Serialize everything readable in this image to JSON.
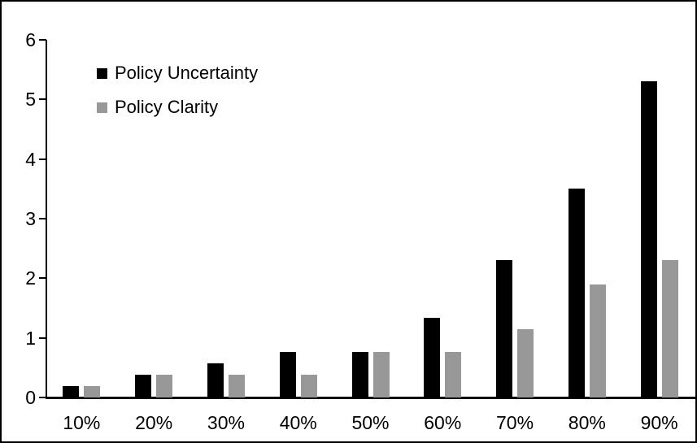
{
  "chart_data": {
    "type": "bar",
    "title": "",
    "xlabel": "",
    "ylabel": "",
    "categories": [
      "10%",
      "20%",
      "30%",
      "40%",
      "50%",
      "60%",
      "70%",
      "80%",
      "90%"
    ],
    "series": [
      {
        "name": "Policy Uncertainty",
        "color": "#000000",
        "values": [
          0.19,
          0.38,
          0.57,
          0.76,
          0.77,
          1.34,
          2.3,
          3.5,
          5.3
        ]
      },
      {
        "name": "Policy Clarity",
        "color": "#989898",
        "values": [
          0.19,
          0.38,
          0.38,
          0.38,
          0.77,
          0.77,
          1.15,
          1.9,
          2.3
        ]
      }
    ],
    "ylim": [
      0,
      6
    ],
    "yticks": [
      0,
      1,
      2,
      3,
      4,
      5,
      6
    ],
    "grid": false,
    "legend_position": "top-left",
    "background": "#ffffff",
    "border_color": "#000000"
  }
}
